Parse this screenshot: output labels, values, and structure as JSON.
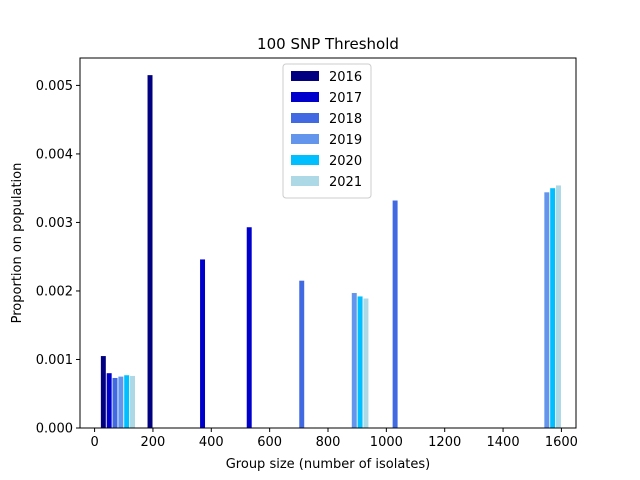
{
  "chart_data": {
    "type": "bar",
    "title": "100 SNP Threshold",
    "xlabel": "Group size (number of isolates)",
    "ylabel": "Proportion on population",
    "xlim": [
      -50,
      1650
    ],
    "ylim": [
      0,
      0.0054
    ],
    "xticks": [
      0,
      200,
      400,
      600,
      800,
      1000,
      1200,
      1400,
      1600
    ],
    "xtick_labels": [
      "0",
      "200",
      "400",
      "600",
      "800",
      "1000",
      "1200",
      "1400",
      "1600"
    ],
    "yticks": [
      0.0,
      0.001,
      0.002,
      0.003,
      0.004,
      0.005
    ],
    "ytick_labels": [
      "0.000",
      "0.001",
      "0.002",
      "0.003",
      "0.004",
      "0.005"
    ],
    "grid": false,
    "legend_position": "top-center",
    "bar_width": 17,
    "series": [
      {
        "name": "2016",
        "color": "#000080",
        "points": [
          {
            "x": 30,
            "y": 0.00105
          },
          {
            "x": 190,
            "y": 0.00515
          }
        ]
      },
      {
        "name": "2017",
        "color": "#0000cd",
        "points": [
          {
            "x": 50,
            "y": 0.0008
          },
          {
            "x": 370,
            "y": 0.00246
          },
          {
            "x": 530,
            "y": 0.00293
          }
        ]
      },
      {
        "name": "2018",
        "color": "#4169e1",
        "points": [
          {
            "x": 70,
            "y": 0.00073
          },
          {
            "x": 710,
            "y": 0.00215
          },
          {
            "x": 1030,
            "y": 0.00332
          }
        ]
      },
      {
        "name": "2019",
        "color": "#6495ed",
        "points": [
          {
            "x": 90,
            "y": 0.00075
          },
          {
            "x": 890,
            "y": 0.00197
          },
          {
            "x": 1550,
            "y": 0.00344
          }
        ]
      },
      {
        "name": "2020",
        "color": "#00bfff",
        "points": [
          {
            "x": 110,
            "y": 0.00077
          },
          {
            "x": 910,
            "y": 0.00192
          },
          {
            "x": 1570,
            "y": 0.0035
          }
        ]
      },
      {
        "name": "2021",
        "color": "#add8e6",
        "points": [
          {
            "x": 130,
            "y": 0.00076
          },
          {
            "x": 930,
            "y": 0.00189
          },
          {
            "x": 1590,
            "y": 0.00354
          }
        ]
      }
    ]
  }
}
